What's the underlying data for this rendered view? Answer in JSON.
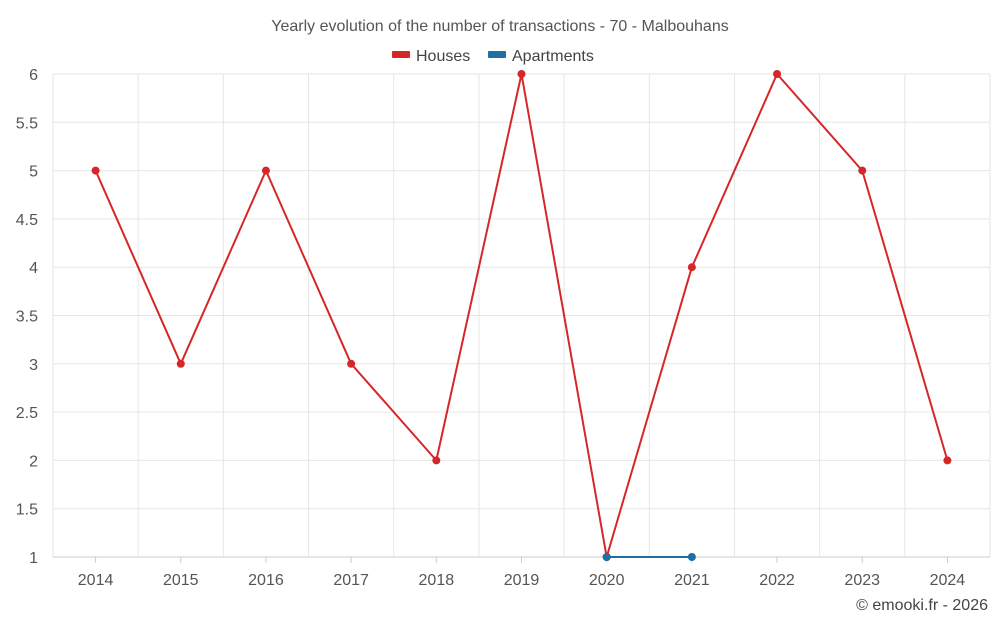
{
  "chart_data": {
    "type": "line",
    "title": "Yearly evolution of the number of transactions - 70 - Malbouhans",
    "categories": [
      "2014",
      "2015",
      "2016",
      "2017",
      "2018",
      "2019",
      "2020",
      "2021",
      "2022",
      "2023",
      "2024"
    ],
    "series": [
      {
        "name": "Houses",
        "color": "#d62728",
        "values": [
          5,
          3,
          5,
          3,
          2,
          6,
          1,
          4,
          6,
          5,
          2
        ]
      },
      {
        "name": "Apartments",
        "color": "#1f6fa3",
        "values": [
          null,
          null,
          null,
          null,
          null,
          null,
          1,
          1,
          null,
          null,
          null
        ]
      }
    ],
    "y_ticks": [
      "1",
      "1.5",
      "2",
      "2.5",
      "3",
      "3.5",
      "4",
      "4.5",
      "5",
      "5.5",
      "6"
    ],
    "ylim": [
      1,
      6
    ],
    "grid": true,
    "legend_position": "top-center"
  },
  "credit": "© emooki.fr - 2026"
}
